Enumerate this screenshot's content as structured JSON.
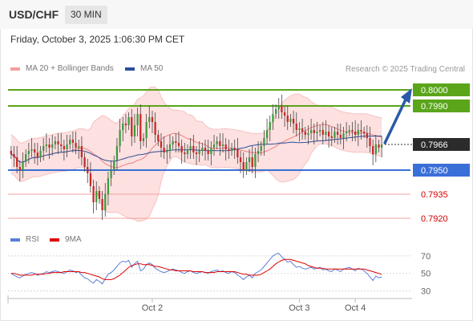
{
  "header": {
    "symbol": "USD/CHF",
    "timeframe": "30 MIN"
  },
  "timestamp": "Friday, October 3, 2025 1:06:30 PM CET",
  "legend": {
    "ma20": {
      "label": "MA 20 + Bollinger Bands",
      "color": "#f08080"
    },
    "ma50": {
      "label": "MA 50",
      "color": "#2c4f9a"
    },
    "credit": "Research © 2025 Trading Central"
  },
  "rsi_legend": {
    "rsi": {
      "label": "RSI",
      "color": "#5b7fd6"
    },
    "ma9": {
      "label": "9MA",
      "color": "#e00000"
    }
  },
  "colors": {
    "bull": "#3c9a3c",
    "bear": "#c62828",
    "resistance": "#5aa51a",
    "pivot": "#3b6fd8",
    "support": "#f4a0a0",
    "arrow": "#2a5aa8"
  },
  "chart_data": [
    {
      "type": "candlestick",
      "ylim": [
        0.7915,
        0.801
      ],
      "x_ticks": [
        "Oct 2",
        "Oct 3",
        "Oct 4"
      ],
      "current_price": "0.7966",
      "levels": [
        {
          "label": "0.8000",
          "value": 0.8,
          "kind": "resistance"
        },
        {
          "label": "0.7990",
          "value": 0.799,
          "kind": "resistance"
        },
        {
          "label": "0.7950",
          "value": 0.795,
          "kind": "pivot"
        },
        {
          "label": "0.7935",
          "value": 0.7935,
          "kind": "support"
        },
        {
          "label": "0.7920",
          "value": 0.792,
          "kind": "support"
        }
      ],
      "close": [
        0.796,
        0.7958,
        0.7952,
        0.795,
        0.7955,
        0.796,
        0.7962,
        0.7963,
        0.7961,
        0.7958,
        0.7962,
        0.7965,
        0.7966,
        0.7964,
        0.7966,
        0.7968,
        0.7966,
        0.7965,
        0.7963,
        0.7966,
        0.7969,
        0.7967,
        0.7964,
        0.7965,
        0.7958,
        0.7952,
        0.7948,
        0.794,
        0.793,
        0.7937,
        0.7932,
        0.7925,
        0.7935,
        0.7945,
        0.795,
        0.7956,
        0.7965,
        0.7975,
        0.7979,
        0.7978,
        0.7983,
        0.7971,
        0.7978,
        0.7985,
        0.7968,
        0.797,
        0.798,
        0.7983,
        0.798,
        0.7972,
        0.7968,
        0.7964,
        0.7961,
        0.7962,
        0.7966,
        0.7968,
        0.7967,
        0.7965,
        0.7961,
        0.796,
        0.7963,
        0.7965,
        0.7961,
        0.796,
        0.7962,
        0.7964,
        0.7962,
        0.796,
        0.7964,
        0.7966,
        0.7968,
        0.7965,
        0.7966,
        0.7963,
        0.7962,
        0.7964,
        0.7963,
        0.7958,
        0.7955,
        0.795,
        0.7955,
        0.7958,
        0.7952,
        0.796,
        0.7962,
        0.7965,
        0.797,
        0.7975,
        0.798,
        0.7985,
        0.7988,
        0.799,
        0.7986,
        0.7984,
        0.798,
        0.7982,
        0.7979,
        0.7975,
        0.7976,
        0.7974,
        0.7972,
        0.7973,
        0.7975,
        0.7973,
        0.7974,
        0.7975,
        0.7972,
        0.7974,
        0.7971,
        0.797,
        0.7974,
        0.7972,
        0.797,
        0.7973,
        0.7974,
        0.7975,
        0.7974,
        0.7972,
        0.7975,
        0.7974,
        0.7973,
        0.797,
        0.7965,
        0.796,
        0.7966,
        0.7964,
        0.7966
      ]
    },
    {
      "type": "line",
      "ylim": [
        25,
        80
      ],
      "y_ticks": [
        "70",
        "50",
        "30"
      ],
      "series": [
        {
          "name": "RSI",
          "values": [
            50,
            48,
            46,
            45,
            47,
            49,
            50,
            51,
            50,
            48,
            49,
            50,
            52,
            51,
            52,
            53,
            52,
            51,
            50,
            52,
            54,
            53,
            51,
            52,
            48,
            45,
            44,
            41,
            39,
            43,
            41,
            38,
            44,
            49,
            51,
            54,
            58,
            62,
            64,
            63,
            65,
            57,
            61,
            64,
            53,
            55,
            60,
            62,
            60,
            56,
            54,
            52,
            51,
            52,
            54,
            55,
            54,
            53,
            51,
            50,
            52,
            53,
            51,
            50,
            51,
            52,
            51,
            50,
            52,
            53,
            54,
            52,
            53,
            51,
            50,
            52,
            51,
            48,
            46,
            43,
            46,
            48,
            45,
            50,
            52,
            54,
            58,
            62,
            66,
            70,
            72,
            73,
            69,
            66,
            63,
            64,
            60,
            57,
            58,
            56,
            55,
            56,
            57,
            55,
            56,
            57,
            54,
            55,
            53,
            52,
            55,
            54,
            52,
            55,
            56,
            57,
            55,
            53,
            56,
            55,
            53,
            50,
            46,
            42,
            47,
            45,
            46
          ]
        },
        {
          "name": "9MA",
          "values": [
            50,
            50,
            49,
            48,
            48,
            48,
            48,
            48,
            49,
            49,
            49,
            49,
            50,
            50,
            51,
            51,
            51,
            51,
            52,
            52,
            52,
            52,
            52,
            52,
            51,
            51,
            50,
            49,
            48,
            47,
            46,
            44,
            43,
            43,
            43,
            44,
            46,
            48,
            51,
            54,
            57,
            59,
            60,
            61,
            61,
            60,
            60,
            60,
            59,
            58,
            58,
            57,
            56,
            55,
            54,
            54,
            53,
            53,
            53,
            53,
            53,
            53,
            52,
            52,
            52,
            52,
            51,
            51,
            51,
            51,
            52,
            52,
            52,
            52,
            52,
            52,
            52,
            51,
            50,
            49,
            49,
            48,
            48,
            48,
            48,
            49,
            51,
            53,
            55,
            58,
            61,
            63,
            65,
            66,
            66,
            66,
            65,
            64,
            63,
            62,
            61,
            59,
            58,
            57,
            56,
            56,
            56,
            55,
            55,
            55,
            55,
            55,
            55,
            55,
            55,
            55,
            55,
            55,
            55,
            55,
            55,
            54,
            53,
            52,
            51,
            50,
            49
          ]
        }
      ]
    }
  ]
}
